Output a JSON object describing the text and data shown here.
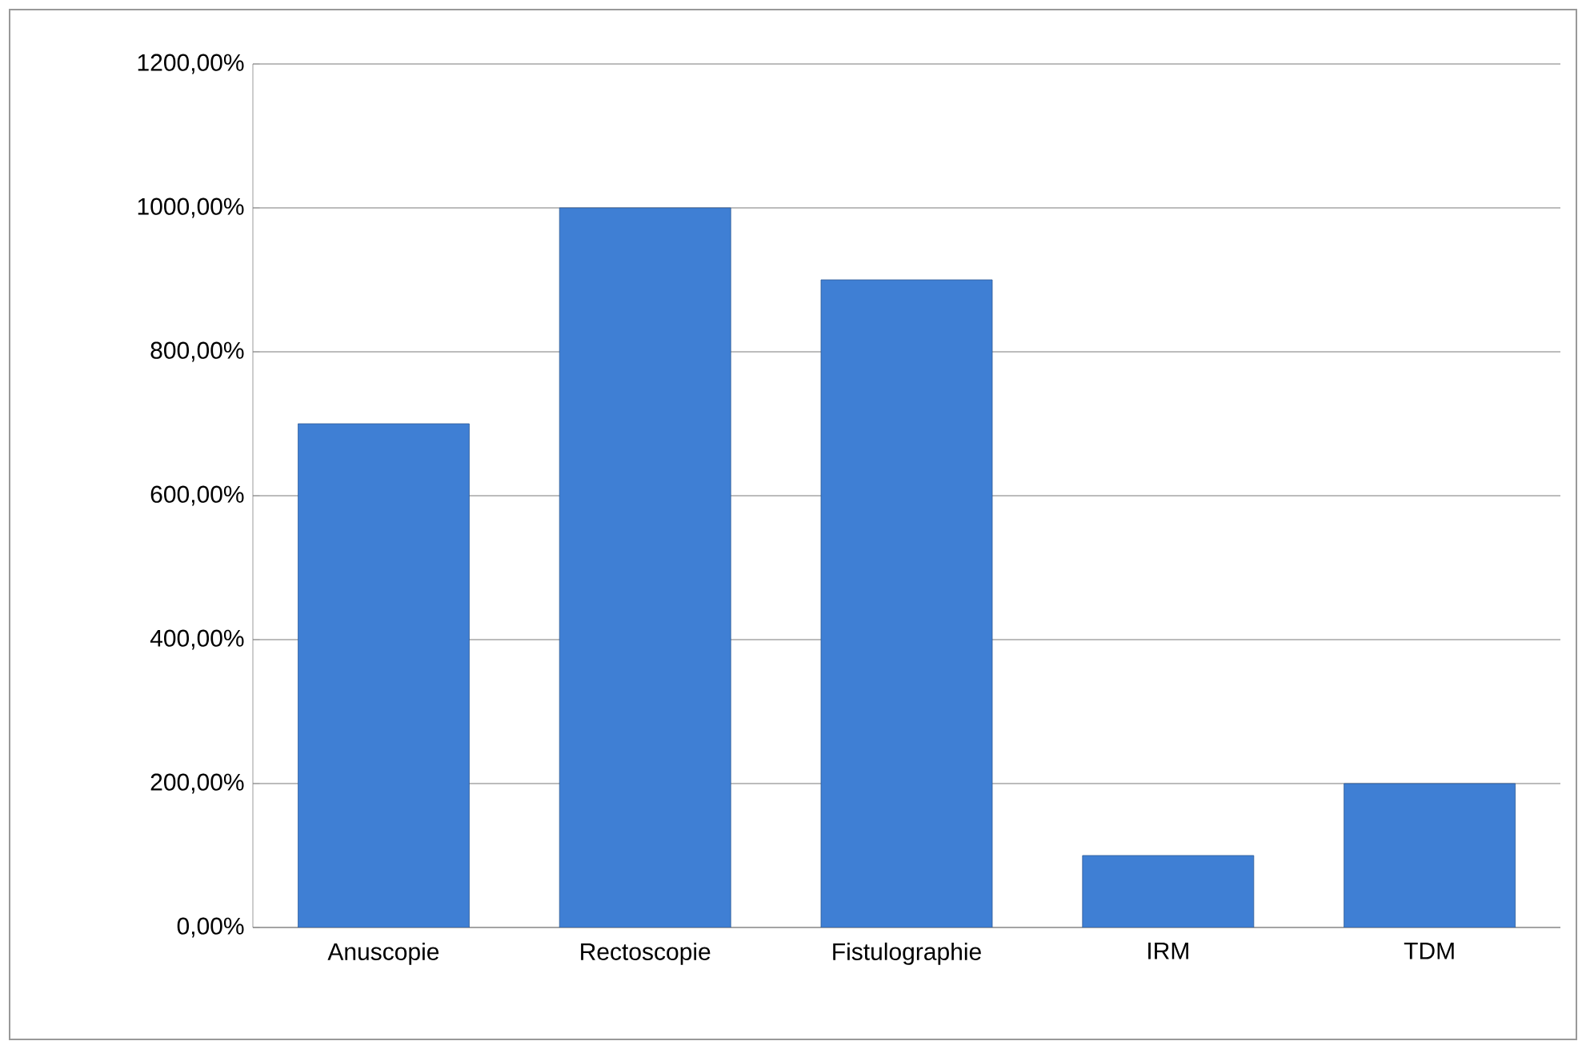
{
  "chart_data": {
    "type": "bar",
    "categories": [
      "Anuscopie",
      "Rectoscopie",
      "Fistulographie",
      "IRM",
      "TDM"
    ],
    "values": [
      700,
      1000,
      900,
      100,
      200
    ],
    "color": "#3f7fd4",
    "ylim": [
      0,
      1200
    ],
    "yticks": [
      {
        "value": 0,
        "label": "0,00%"
      },
      {
        "value": 200,
        "label": "200,00%"
      },
      {
        "value": 400,
        "label": "400,00%"
      },
      {
        "value": 600,
        "label": "600,00%"
      },
      {
        "value": 800,
        "label": "800,00%"
      },
      {
        "value": 1000,
        "label": "1000,00%"
      },
      {
        "value": 1200,
        "label": "1200,00%"
      }
    ],
    "grid": "y"
  }
}
